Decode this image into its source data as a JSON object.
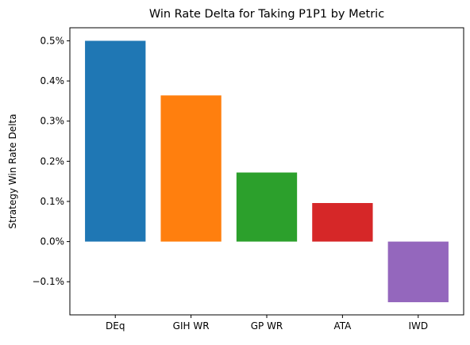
{
  "chart_data": {
    "type": "bar",
    "title": "Win Rate Delta for Taking P1P1 by Metric",
    "xlabel": "",
    "ylabel": "Strategy Win Rate Delta",
    "categories": [
      "DEq",
      "GIH WR",
      "GP WR",
      "ATA",
      "IWD"
    ],
    "values": [
      0.5,
      0.364,
      0.172,
      0.096,
      -0.151
    ],
    "value_unit": "%",
    "ylim": [
      -0.1825,
      0.5325
    ],
    "yticks": [
      -0.1,
      0.0,
      0.1,
      0.2,
      0.3,
      0.4,
      0.5
    ],
    "ytick_labels": [
      "−0.1%",
      "0.0%",
      "0.1%",
      "0.2%",
      "0.3%",
      "0.4%",
      "0.5%"
    ],
    "colors": [
      "#1f77b4",
      "#ff7f0e",
      "#2ca02c",
      "#d62728",
      "#9467bd"
    ],
    "grid": false,
    "legend": "none"
  }
}
